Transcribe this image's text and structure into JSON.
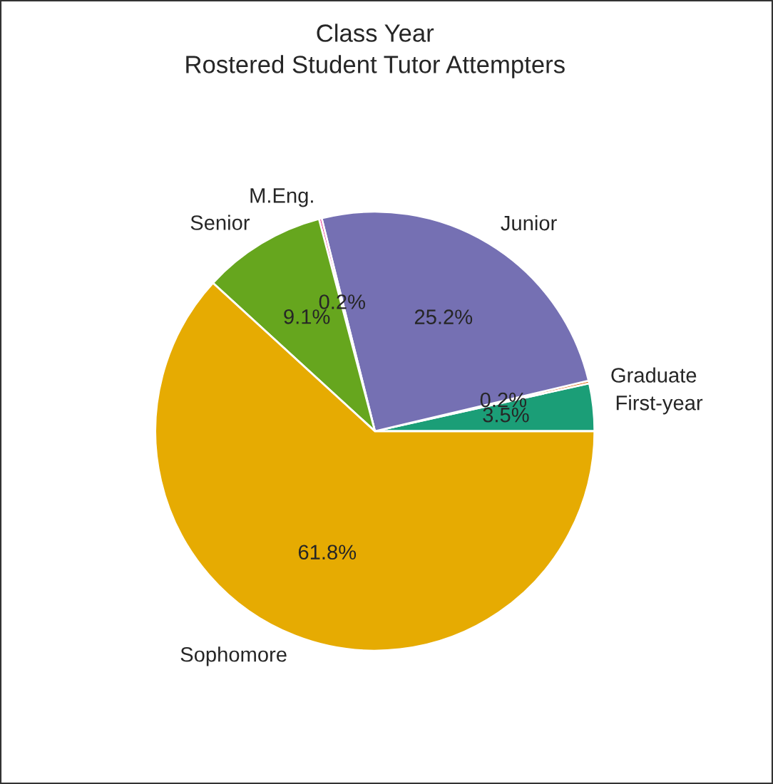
{
  "chart_data": {
    "type": "pie",
    "title": "Class Year",
    "subtitle": "Rostered Student Tutor Attempters",
    "categories": [
      "First-year",
      "Graduate",
      "Junior",
      "M.Eng.",
      "Senior",
      "Sophomore"
    ],
    "values": [
      3.5,
      0.2,
      25.2,
      0.2,
      9.1,
      61.8
    ],
    "value_labels": [
      "3.5%",
      "0.2%",
      "25.2%",
      "0.2%",
      "9.1%",
      "61.8%"
    ],
    "colors": [
      "#1b9e77",
      "#d95f02",
      "#7570b3",
      "#e7298a",
      "#66a61e",
      "#e6ab02"
    ]
  }
}
